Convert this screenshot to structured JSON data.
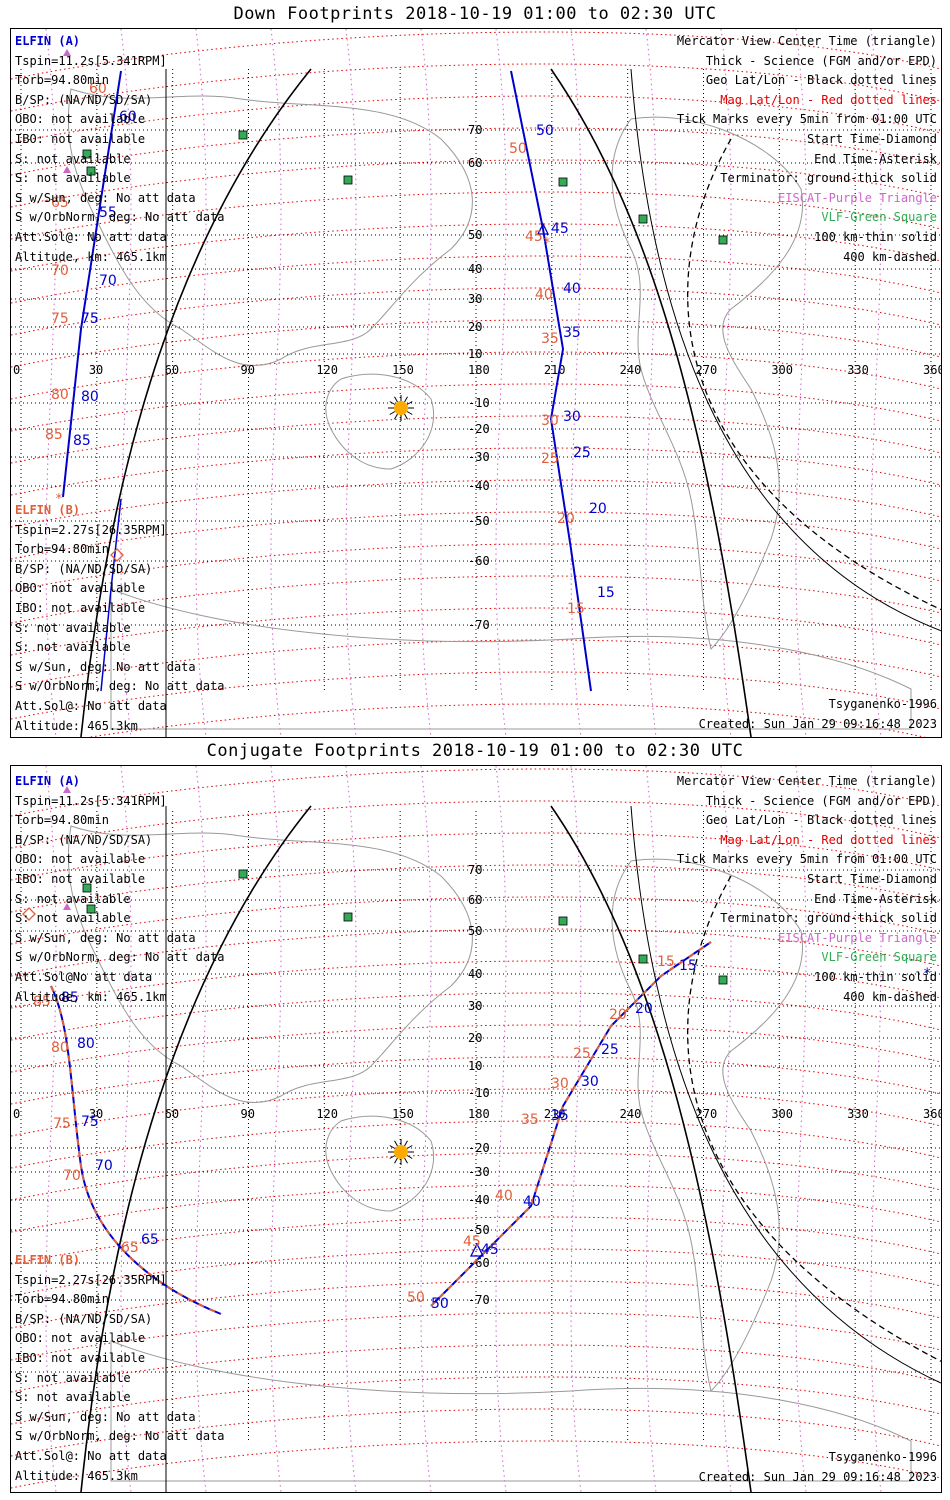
{
  "panels": [
    {
      "title": "Down Footprints 2018-10-19 01:00 to 02:30 UTC",
      "ticks_lon": [
        "0",
        "30",
        "60",
        "90",
        "120",
        "150",
        "180",
        "210",
        "240",
        "270",
        "300",
        "330",
        "360"
      ],
      "ticks_lat": [
        "70",
        "60",
        "50",
        "40",
        "30",
        "20",
        "10",
        "-10",
        "-20",
        "-30",
        "-40",
        "-50",
        "-60",
        "-70"
      ],
      "info_a": {
        "title": "ELFIN (A)",
        "lines": [
          "Tspin=11.2s[5.341RPM]",
          "Torb=94.80min",
          "B/SP: (NA/ND/SD/SA)",
          "OBO: not available",
          "IBO: not available",
          "S: not available",
          "S: not available",
          "S w/Sun, deg: No att data",
          "S w/OrbNorm, deg: No att data",
          "Att.Sol@: No att data",
          "Altitude, km: 465.1km"
        ]
      },
      "info_b": {
        "title": "ELFIN (B)",
        "lines": [
          "Tspin=2.27s[26.35RPM]",
          "Torb=94.80min",
          "B/SP: (NA/ND/SD/SA)",
          "OBO: not available",
          "IBO: not available",
          "S: not available",
          "S: not available",
          "S w/Sun, deg: No att data",
          "S w/OrbNorm, deg: No att data",
          "Att.Sol@: No att data",
          "Altitude: 465.3km"
        ]
      },
      "legend": [
        {
          "text": "Mercator View Center Time (triangle)",
          "color": "#000000"
        },
        {
          "text": "Thick - Science (FGM and/or EPD)",
          "color": "#000000"
        },
        {
          "text": "Geo Lat/Lon - Black dotted lines",
          "color": "#000000"
        },
        {
          "text": "Mag Lat/Lon - Red dotted lines",
          "color": "#e00000"
        },
        {
          "text": "Tick Marks every 5min from 01:00 UTC",
          "color": "#000000"
        },
        {
          "text": "Start Time-Diamond",
          "color": "#000000"
        },
        {
          "text": "End Time-Asterisk",
          "color": "#000000"
        },
        {
          "text": "Terminator: ground-thick solid",
          "color": "#000000"
        },
        {
          "text": "EISCAT-Purple Triangle",
          "color": "#cc66cc"
        },
        {
          "text": "VLF-Green Square",
          "color": "#33aa55"
        },
        {
          "text": "100 km-thin solid",
          "color": "#000000"
        },
        {
          "text": "400 km-dashed",
          "color": "#000000"
        }
      ],
      "credit_model": "Tsyganenko-1996",
      "created": "Created: Sun Jan 29 09:16:48 2023",
      "track_a_labels": [
        "60",
        "55",
        "70",
        "75",
        "80",
        "85",
        "50",
        "45",
        "40",
        "35",
        "30",
        "25",
        "20",
        "15"
      ],
      "track_b_labels": [
        "60",
        "65",
        "70",
        "75",
        "80",
        "85",
        "50",
        "45",
        "40",
        "35",
        "30",
        "25",
        "20",
        "15"
      ]
    },
    {
      "title": "Conjugate Footprints 2018-10-19 01:00 to 02:30 UTC",
      "ticks_lon": [
        "0",
        "30",
        "60",
        "90",
        "120",
        "150",
        "180",
        "210",
        "240",
        "270",
        "300",
        "330",
        "360"
      ],
      "ticks_lat": [
        "70",
        "60",
        "50",
        "40",
        "30",
        "20",
        "10",
        "-10",
        "-20",
        "-30",
        "-40",
        "-50",
        "-60",
        "-70"
      ],
      "info_a": {
        "title": "ELFIN (A)",
        "lines": [
          "Tspin=11.2s[5.341RPM]",
          "Torb=94.80min",
          "B/SP: (NA/ND/SD/SA)",
          "OBO: not available",
          "IBO: not available",
          "S: not available",
          "S: not available",
          "S w/Sun, deg: No att data",
          "S w/OrbNorm, deg: No att data",
          "Att.Sol@No att data",
          "Altitude, km: 465.1km"
        ]
      },
      "info_b": {
        "title": "ELFIN (B)",
        "lines": [
          "Tspin=2.27s[26.35RPM]",
          "Torb=94.80min",
          "B/SP: (NA/ND/SD/SA)",
          "OBO: not available",
          "IBO: not available",
          "S: not available",
          "S: not available",
          "S w/Sun, deg: No att data",
          "S w/OrbNorm, deg: No att data",
          "Att.Sol@: No att data",
          "Altitude: 465.3km"
        ]
      },
      "legend": [
        {
          "text": "Mercator View Center Time (triangle)",
          "color": "#000000"
        },
        {
          "text": "Thick - Science (FGM and/or EPD)",
          "color": "#000000"
        },
        {
          "text": "Geo Lat/Lon - Black dotted lines",
          "color": "#000000"
        },
        {
          "text": "Mag Lat/Lon - Red dotted lines",
          "color": "#e00000"
        },
        {
          "text": "Tick Marks every 5min from 01:00 UTC",
          "color": "#000000"
        },
        {
          "text": "Start Time-Diamond",
          "color": "#000000"
        },
        {
          "text": "End Time-Asterisk",
          "color": "#000000"
        },
        {
          "text": "Terminator: ground-thick solid",
          "color": "#000000"
        },
        {
          "text": "EISCAT-Purple Triangle",
          "color": "#cc66cc"
        },
        {
          "text": "VLF-Green Square",
          "color": "#33aa55"
        },
        {
          "text": "100 km-thin solid",
          "color": "#000000"
        },
        {
          "text": "400 km-dashed",
          "color": "#000000"
        }
      ],
      "credit_model": "Tsyganenko-1996",
      "created": "Created: Sun Jan 29 09:16:48 2023",
      "track_a_labels": [
        "85",
        "80",
        "75",
        "70",
        "65",
        "50",
        "45",
        "40",
        "35",
        "30",
        "25",
        "20",
        "15"
      ],
      "track_b_labels": [
        "85",
        "80",
        "75",
        "70",
        "65",
        "50",
        "45",
        "40",
        "35",
        "30",
        "25",
        "20",
        "15"
      ]
    }
  ],
  "colors": {
    "elfin_a": "#0000cc",
    "elfin_b": "#e0603a",
    "mag_grid": "#e00000",
    "geo_grid": "#000000",
    "eiscat": "#cc66cc",
    "vlf": "#33aa55",
    "coast": "#999999",
    "sun": "#ffaa00"
  }
}
